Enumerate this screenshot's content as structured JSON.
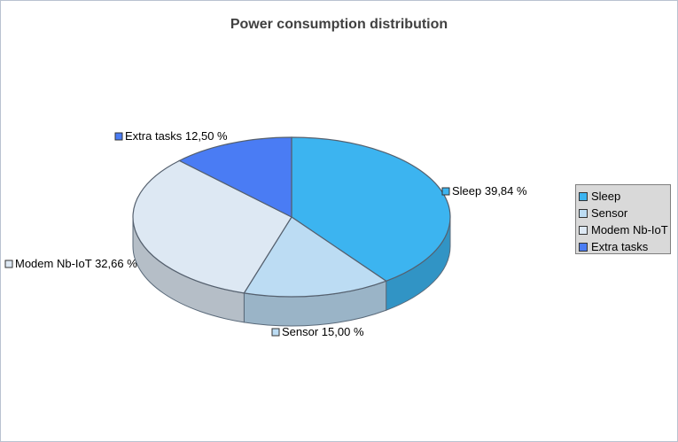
{
  "chart_data": {
    "type": "pie",
    "title": "Power consumption distribution",
    "slices": [
      {
        "name": "Sleep",
        "value": 39.84,
        "label": "Sleep 39,84 %",
        "color": "#3cb4f0"
      },
      {
        "name": "Sensor",
        "value": 15.0,
        "label": "Sensor 15,00 %",
        "color": "#bcdcf3"
      },
      {
        "name": "Modem Nb-IoT",
        "value": 32.66,
        "label": "Modem Nb-IoT 32,66 %",
        "color": "#dde8f3"
      },
      {
        "name": "Extra tasks",
        "value": 12.5,
        "label": "Extra tasks 12,50 %",
        "color": "#4a7cf4"
      }
    ],
    "legend_position": "right",
    "three_d": true
  }
}
